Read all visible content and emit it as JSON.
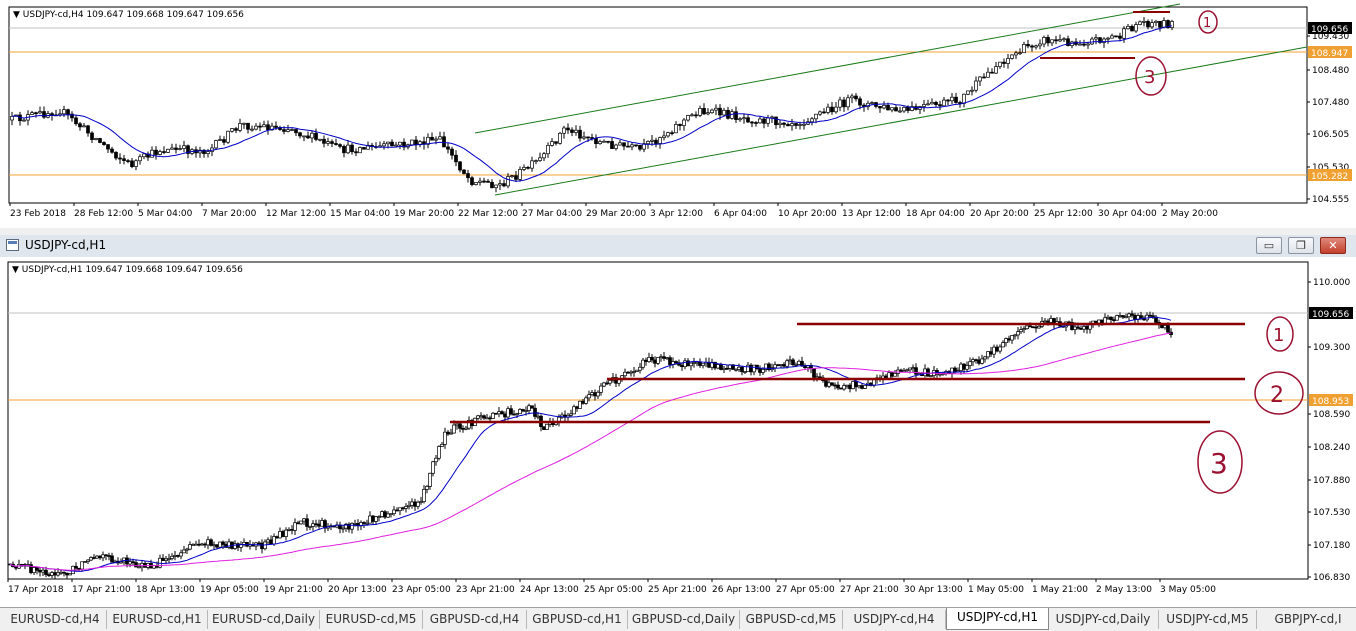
{
  "top_chart": {
    "info": "USDJPY-cd,H4  109.647 109.668 109.647 109.656",
    "price_ticks": [
      "109.430",
      "108.480",
      "107.480",
      "106.505",
      "105.530",
      "104.555"
    ],
    "current_price": "109.656",
    "hline_orange_price": "108.947",
    "hline_support_price": "105.282",
    "time_ticks": [
      "23 Feb 2018",
      "28 Feb 12:00",
      "5 Mar 04:00",
      "7 Mar 20:00",
      "12 Mar 12:00",
      "15 Mar 04:00",
      "19 Mar 20:00",
      "22 Mar 12:00",
      "27 Mar 04:00",
      "29 Mar 20:00",
      "3 Apr 12:00",
      "6 Apr 04:00",
      "10 Apr 20:00",
      "13 Apr 12:00",
      "18 Apr 04:00",
      "20 Apr 20:00",
      "25 Apr 12:00",
      "30 Apr 04:00",
      "2 May 20:00"
    ],
    "annotations": [
      "1",
      "3"
    ],
    "colors": {
      "candle": "#000000",
      "ma": "#0000c8",
      "channel": "#1a7a1a",
      "orange": "#f0a030",
      "support": "#8b0000"
    }
  },
  "bottom_window": {
    "title": "USDJPY-cd,H1",
    "minimize_glyph": "▭",
    "restore_glyph": "❐",
    "close_glyph": "✕"
  },
  "bottom_chart": {
    "info": "USDJPY-cd,H1  109.647 109.668 109.647 109.656",
    "price_ticks": [
      "110.000",
      "109.300",
      "108.590",
      "108.240",
      "107.880",
      "107.530",
      "107.180",
      "106.830"
    ],
    "current_price": "109.656",
    "hline_orange_price": "108.953",
    "time_ticks": [
      "17 Apr 2018",
      "17 Apr 21:00",
      "18 Apr 13:00",
      "19 Apr 05:00",
      "19 Apr 21:00",
      "20 Apr 13:00",
      "23 Apr 05:00",
      "23 Apr 21:00",
      "24 Apr 13:00",
      "25 Apr 05:00",
      "25 Apr 21:00",
      "26 Apr 13:00",
      "27 Apr 05:00",
      "27 Apr 21:00",
      "30 Apr 13:00",
      "1 May 05:00",
      "1 May 21:00",
      "2 May 13:00",
      "3 May 05:00"
    ],
    "annotations": [
      "1",
      "2",
      "3"
    ],
    "colors": {
      "candle": "#000000",
      "ma_fast": "#0000c8",
      "ma_slow": "#e020e0",
      "orange": "#f0a030",
      "support": "#8b0000"
    }
  },
  "tabs": [
    {
      "label": "EURUSD-cd,H4",
      "active": false
    },
    {
      "label": "EURUSD-cd,H1",
      "active": false
    },
    {
      "label": "EURUSD-cd,Daily",
      "active": false
    },
    {
      "label": "EURUSD-cd,M5",
      "active": false
    },
    {
      "label": "GBPUSD-cd,H4",
      "active": false
    },
    {
      "label": "GBPUSD-cd,H1",
      "active": false
    },
    {
      "label": "GBPUSD-cd,Daily",
      "active": false
    },
    {
      "label": "GBPUSD-cd,M5",
      "active": false
    },
    {
      "label": "USDJPY-cd,H4",
      "active": false
    },
    {
      "label": "USDJPY-cd,H1",
      "active": true
    },
    {
      "label": "USDJPY-cd,Daily",
      "active": false
    },
    {
      "label": "USDJPY-cd,M5",
      "active": false
    },
    {
      "label": "GBPJPY-cd,I",
      "active": false
    }
  ]
}
